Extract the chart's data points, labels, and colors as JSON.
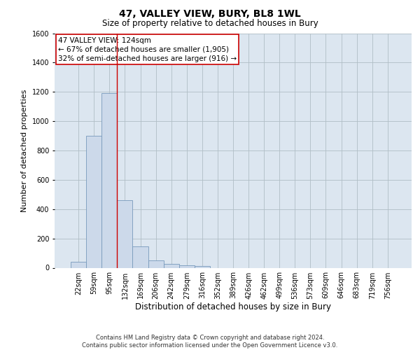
{
  "title": "47, VALLEY VIEW, BURY, BL8 1WL",
  "subtitle": "Size of property relative to detached houses in Bury",
  "xlabel": "Distribution of detached houses by size in Bury",
  "ylabel": "Number of detached properties",
  "footer": "Contains HM Land Registry data © Crown copyright and database right 2024.\nContains public sector information licensed under the Open Government Licence v3.0.",
  "bar_categories": [
    "22sqm",
    "59sqm",
    "95sqm",
    "132sqm",
    "169sqm",
    "206sqm",
    "242sqm",
    "279sqm",
    "316sqm",
    "352sqm",
    "389sqm",
    "426sqm",
    "462sqm",
    "499sqm",
    "536sqm",
    "573sqm",
    "609sqm",
    "646sqm",
    "683sqm",
    "719sqm",
    "756sqm"
  ],
  "bar_values": [
    40,
    900,
    1190,
    460,
    145,
    50,
    25,
    15,
    10,
    0,
    0,
    0,
    0,
    0,
    0,
    0,
    0,
    0,
    0,
    0,
    0
  ],
  "bar_color": "#ccd9ea",
  "bar_edge_color": "#7799bb",
  "ylim": [
    0,
    1600
  ],
  "yticks": [
    0,
    200,
    400,
    600,
    800,
    1000,
    1200,
    1400,
    1600
  ],
  "annotation_lines": [
    "47 VALLEY VIEW: 124sqm",
    "← 67% of detached houses are smaller (1,905)",
    "32% of semi-detached houses are larger (916) →"
  ],
  "vline_color": "#cc0000",
  "annotation_box_color": "#ffffff",
  "annotation_box_edge": "#cc0000",
  "grid_color": "#b0bec5",
  "ax_bg_color": "#dce6f0",
  "background_color": "#ffffff",
  "title_fontsize": 10,
  "subtitle_fontsize": 8.5,
  "ylabel_fontsize": 8,
  "xlabel_fontsize": 8.5,
  "tick_fontsize": 7,
  "annot_fontsize": 7.5,
  "footer_fontsize": 6
}
